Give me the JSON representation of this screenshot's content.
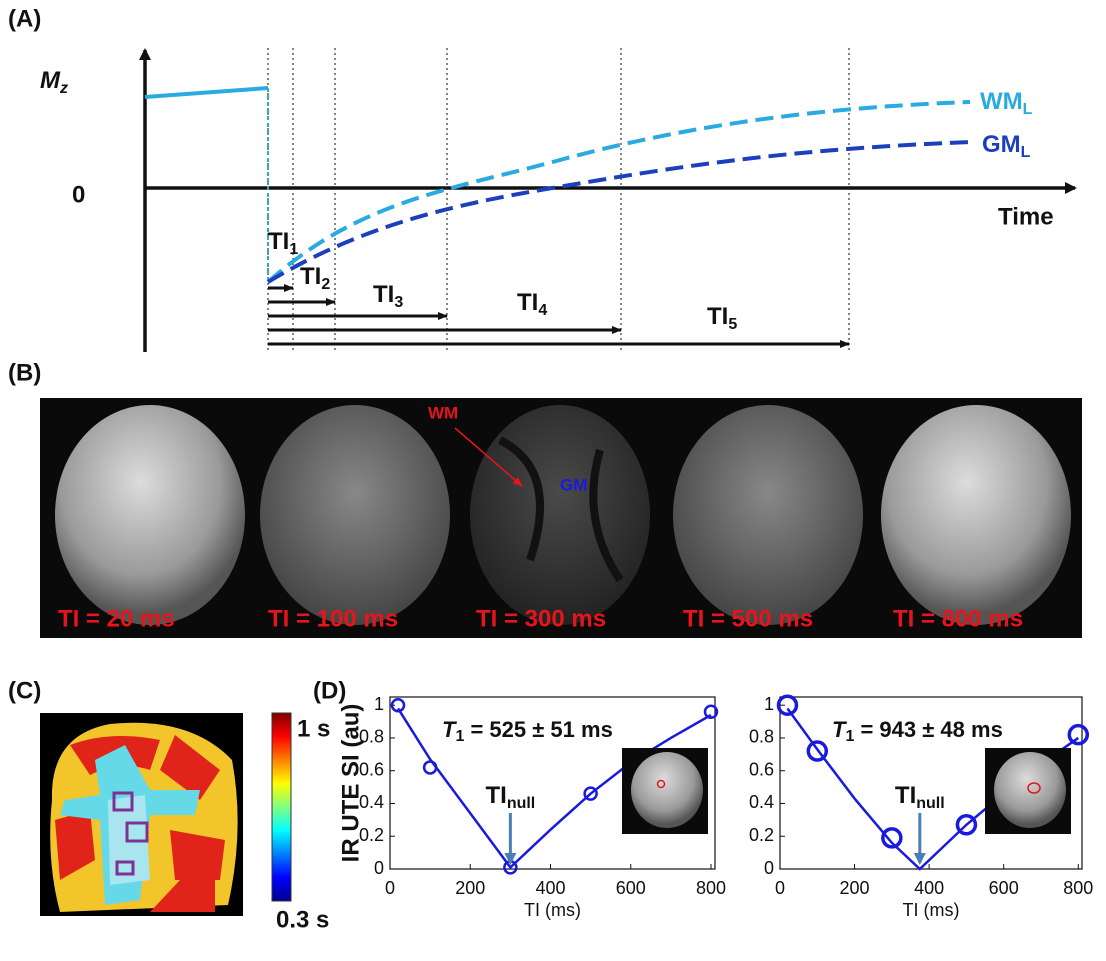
{
  "panel_a": {
    "label": "(A)",
    "y_axis": {
      "text": "M",
      "sub": "z"
    },
    "zero": "0",
    "x_axis": "Time",
    "wm": {
      "text": "WM",
      "sub": "L"
    },
    "gm": {
      "text": "GM",
      "sub": "L"
    },
    "ti": [
      {
        "text": "TI",
        "sub": "1"
      },
      {
        "text": "TI",
        "sub": "2"
      },
      {
        "text": "TI",
        "sub": "3"
      },
      {
        "text": "TI",
        "sub": "4"
      },
      {
        "text": "TI",
        "sub": "5"
      }
    ]
  },
  "panel_b": {
    "label": "(B)",
    "wm": "WM",
    "gm": "GM",
    "images": [
      "TI = 20 ms",
      "TI = 100 ms",
      "TI = 300 ms",
      "TI = 500 ms",
      "TI = 800 ms"
    ]
  },
  "panel_c": {
    "label": "(C)",
    "colorbar_top": "1 s",
    "colorbar_bottom": "0.3 s"
  },
  "panel_d": {
    "label": "(D)"
  },
  "chart_data": [
    {
      "type": "line",
      "y_label": "IR UTE SI (au)",
      "x_label": "TI (ms)",
      "annotation": {
        "text": "T",
        "sub": "1",
        "rest": " = 525 ±  51 ms"
      },
      "null_label": {
        "text": "TI",
        "sub": "null"
      },
      "xlim": [
        0,
        810
      ],
      "xticks": [
        0,
        200,
        400,
        600,
        800
      ],
      "ylim": [
        0,
        1.05
      ],
      "yticks": [
        0,
        0.2,
        0.4,
        0.6,
        0.8,
        1
      ],
      "series": [
        {
          "mode": "markers",
          "color": "#1a1adf",
          "x": [
            20,
            100,
            300,
            500,
            800
          ],
          "values": [
            1,
            0.62,
            0.01,
            0.46,
            0.96
          ]
        },
        {
          "mode": "line",
          "color": "#1a1adf",
          "x": [
            20,
            100,
            200,
            300,
            400,
            500,
            600,
            700,
            800
          ],
          "values": [
            0.98,
            0.67,
            0.34,
            0.01,
            0.24,
            0.46,
            0.65,
            0.8,
            0.94
          ]
        }
      ]
    },
    {
      "type": "line",
      "x_label": "TI (ms)",
      "annotation": {
        "text": "T",
        "sub": "1",
        "rest": " = 943 ± 48 ms"
      },
      "null_label": {
        "text": "TI",
        "sub": "null"
      },
      "xlim": [
        0,
        810
      ],
      "xticks": [
        0,
        200,
        400,
        600,
        800
      ],
      "ylim": [
        0,
        1.05
      ],
      "yticks": [
        0,
        0.2,
        0.4,
        0.6,
        0.8,
        1
      ],
      "series": [
        {
          "mode": "markers",
          "color": "#1a1adf",
          "x": [
            20,
            100,
            300,
            500,
            800
          ],
          "values": [
            1,
            0.72,
            0.19,
            0.27,
            0.82
          ]
        },
        {
          "mode": "line",
          "color": "#1a1adf",
          "x": [
            20,
            100,
            200,
            300,
            375,
            500,
            600,
            700,
            800
          ],
          "values": [
            0.98,
            0.73,
            0.43,
            0.16,
            0,
            0.27,
            0.46,
            0.64,
            0.8
          ]
        }
      ]
    }
  ]
}
